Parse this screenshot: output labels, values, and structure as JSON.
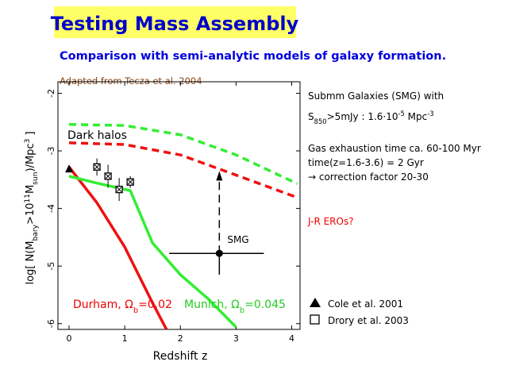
{
  "title": "Testing Mass Assembly",
  "subtitle": "Comparison with semi-analytic models of galaxy formation.",
  "source": "Adapted from Tecza et al. 2004",
  "notes": [
    {
      "color": "#000000",
      "parts": [
        {
          "text": "Submm Galaxies (SMG) with"
        }
      ]
    },
    {
      "color": "#000000",
      "parts": [
        {
          "text": "S"
        },
        {
          "text": "850",
          "shift": "sub"
        },
        {
          "text": ">5mJy : 1.6·10"
        },
        {
          "text": "-5",
          "shift": "super"
        },
        {
          "text": " Mpc"
        },
        {
          "text": "-3",
          "shift": "super"
        }
      ]
    },
    {
      "color": "#000000",
      "parts": [
        {
          "text": "Gas exhaustion time ca. 60-100 Myr"
        }
      ]
    },
    {
      "color": "#000000",
      "parts": [
        {
          "text": "time(z=1.6-3.6) = 2 Gyr"
        }
      ]
    },
    {
      "color": "#000000",
      "parts": [
        {
          "text": "→ correction factor 20-30"
        }
      ]
    },
    {
      "color": "#ee0000",
      "parts": [
        {
          "text": "J-R EROs?"
        }
      ]
    }
  ],
  "chart_data": {
    "type": "line",
    "x_label": "Redshift z",
    "y_label": [
      {
        "text": "log[ N(M"
      },
      {
        "text": "bary",
        "shift": "sub"
      },
      {
        "text": ">10"
      },
      {
        "text": "11",
        "shift": "super"
      },
      {
        "text": "M"
      },
      {
        "text": "sun",
        "shift": "sub"
      },
      {
        "text": ")/Mpc"
      },
      {
        "text": "3",
        "shift": "super"
      },
      {
        "text": " ]"
      }
    ],
    "xlim": [
      -0.2,
      4.15
    ],
    "ylim": [
      -6.1,
      -1.8
    ],
    "xticks": [
      0,
      1,
      2,
      3,
      4
    ],
    "yticks": [
      -2,
      -3,
      -4,
      -5,
      -6
    ],
    "series": [
      {
        "color": "#33ee33",
        "dashed": true,
        "label_color": "#000000",
        "label": [
          {
            "text": "Dark halos"
          }
        ],
        "x": [
          0,
          1,
          2,
          3,
          4.1
        ],
        "values": [
          -2.54,
          -2.56,
          -2.72,
          -3.07,
          -3.57
        ]
      },
      {
        "color": "#ee1111",
        "dashed": true,
        "x": [
          0,
          1,
          2,
          3,
          4.1
        ],
        "values": [
          -2.86,
          -2.89,
          -3.07,
          -3.42,
          -3.81
        ]
      },
      {
        "color": "#ee1111",
        "dashed": false,
        "label_color": "#ee0000",
        "label": [
          {
            "text": "Durham, Ω"
          },
          {
            "text": "b",
            "shift": "sub"
          },
          {
            "text": "=0.02"
          }
        ],
        "x": [
          0,
          0.5,
          1,
          1.5,
          1.75
        ],
        "values": [
          -3.28,
          -3.9,
          -4.67,
          -5.64,
          -6.1
        ]
      },
      {
        "color": "#33ee33",
        "dashed": false,
        "label_color": "#22cc22",
        "label": [
          {
            "text": "Munich, Ω"
          },
          {
            "text": "b",
            "shift": "sub"
          },
          {
            "text": "=0.045"
          }
        ],
        "x": [
          0,
          0.5,
          1.1,
          1.5,
          2,
          2.5,
          3
        ],
        "values": [
          -3.44,
          -3.56,
          -3.69,
          -4.6,
          -5.15,
          -5.57,
          -6.06
        ]
      }
    ],
    "markers": [
      {
        "name": "Cole et al. 2001",
        "shape": "triangle",
        "x": [
          0
        ],
        "values": [
          -3.32
        ]
      },
      {
        "name": "Drory et al. 2003",
        "shape": "square",
        "x": [
          0.5,
          0.7,
          0.9,
          1.1
        ],
        "values": [
          -3.28,
          -3.44,
          -3.67,
          -3.54
        ],
        "yerr": [
          0.15,
          0.2,
          0.2,
          0.1
        ]
      }
    ],
    "smg": {
      "label": "SMG",
      "x": 2.7,
      "value": -4.78,
      "x_range": [
        1.8,
        3.5
      ],
      "y_low": -5.15,
      "arrow_to": -3.35
    }
  }
}
